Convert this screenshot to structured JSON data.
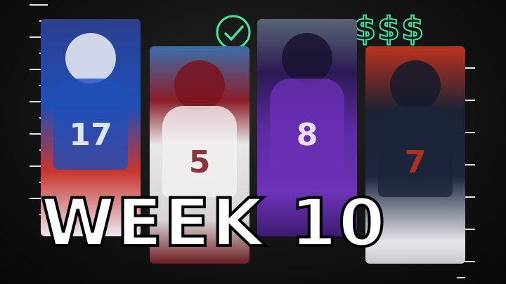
{
  "graphic": {
    "headline": "WEEK 10",
    "symbols": {
      "check_icon": "check-circle-icon",
      "dollar_text": "$$$",
      "accent_color": "#3ee6a4"
    },
    "players": [
      {
        "jersey_number": "17",
        "team_colors": [
          "#1f4fb8",
          "#c8352e"
        ]
      },
      {
        "jersey_number": "5",
        "team_colors": [
          "#8c1d2a",
          "#e8e6e6"
        ]
      },
      {
        "jersey_number": "8",
        "team_colors": [
          "#5b2aa0",
          "#2a1a55"
        ]
      },
      {
        "jersey_number": "7",
        "team_colors": [
          "#1e2740",
          "#b9331f"
        ]
      }
    ]
  }
}
